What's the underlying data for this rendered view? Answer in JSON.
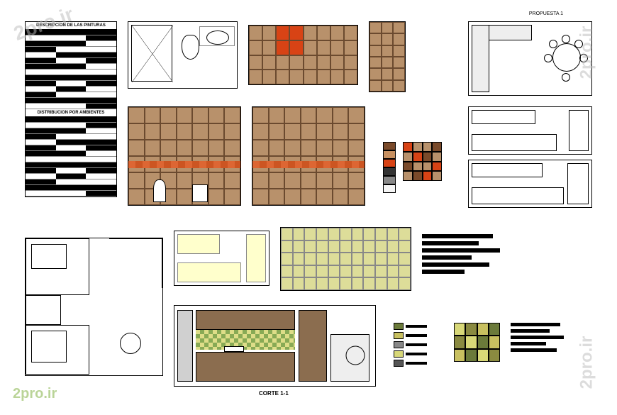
{
  "watermarks": {
    "site": "2pro.ir",
    "logo": "2pro.ir"
  },
  "schedule": {
    "title1": "DESCRIPCION DE LAS PINTURAS",
    "title2": "DISTRIBUCION POR AMBIENTES",
    "rows1": 14,
    "rows2": 14
  },
  "propuesta": {
    "label": "PROPUESTA 1"
  },
  "corte": {
    "label": "CORTE 1-1"
  },
  "tiles": {
    "elev1": {
      "cols": 8,
      "rows": 4,
      "base_color": "#b8916b",
      "accent_color": "#d84315"
    },
    "elev2": {
      "cols": 3,
      "rows": 6,
      "base_color": "#b8916b"
    },
    "elev3": {
      "cols": 7,
      "rows": 6,
      "base_color": "#b8916b",
      "accent_row_color": "#d84315"
    },
    "elev4": {
      "cols": 7,
      "rows": 6,
      "base_color": "#b8916b"
    }
  },
  "palette1": {
    "swatches": [
      "#7a4a2a",
      "#c89060",
      "#d84315",
      "#333333",
      "#888888",
      "#f5f5f5"
    ],
    "grid": [
      "#d84315",
      "#b8916b",
      "#b8916b",
      "#7a4a2a",
      "#b8916b",
      "#d84315",
      "#7a4a2a",
      "#b8916b",
      "#7a4a2a",
      "#b8916b",
      "#b8916b",
      "#d84315",
      "#b8916b",
      "#7a4a2a",
      "#d84315",
      "#b8916b"
    ]
  },
  "palette2": {
    "swatches": [
      "#6b7a3a",
      "#c8c060",
      "#888888",
      "#d8d878",
      "#555555"
    ],
    "grid": [
      "#d8d878",
      "#8a8a40",
      "#c8c060",
      "#6b7a3a",
      "#8a8a40",
      "#d8d878",
      "#6b7a3a",
      "#c8c060",
      "#c8c060",
      "#6b7a3a",
      "#d8d878",
      "#8a8a40"
    ]
  },
  "ceiling": {
    "grid_color": "#d8d878",
    "cols": 11,
    "rows": 5
  },
  "corte_section": {
    "cabinet_color": "#8b6d4f",
    "wall_color": "#d0d0d0",
    "backsplash_colors": [
      "#8a9a5a",
      "#d8d878"
    ]
  },
  "floor_plan": {
    "rooms": [
      "bedroom1",
      "bedroom2",
      "bath",
      "kitchen",
      "dining"
    ]
  }
}
